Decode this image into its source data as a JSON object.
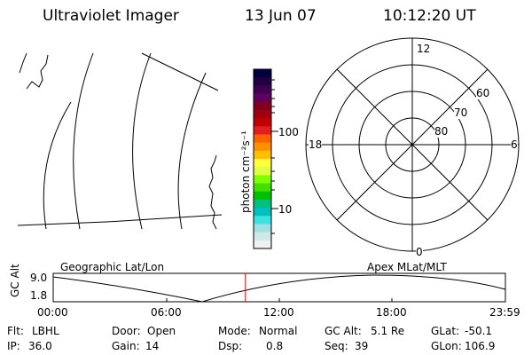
{
  "header": {
    "instrument": "Ultraviolet Imager",
    "date": "13 Jun 07",
    "time": "10:12:20 UT"
  },
  "map_panel": {
    "label": "Geographic Lat/Lon"
  },
  "colorbar": {
    "unit": "photon cm⁻²s⁻¹",
    "ticks": [
      "100",
      "10"
    ],
    "scale": "log",
    "colors": [
      "#000040",
      "#200040",
      "#400050",
      "#600060",
      "#800020",
      "#a00010",
      "#c00000",
      "#e02020",
      "#ff6000",
      "#ff9000",
      "#ffc000",
      "#ffff40",
      "#e0ff40",
      "#80ff00",
      "#40e000",
      "#00c000",
      "#00c080",
      "#00c0c0",
      "#40e0e0",
      "#a0e0e0",
      "#d0e8e8",
      "#f0f0f0"
    ]
  },
  "polar_panel": {
    "label": "Apex MLat/MLT",
    "mlt_labels": {
      "top": "12",
      "left": "18",
      "right": "6",
      "bottom": "0"
    },
    "lat_labels": [
      "60",
      "70",
      "80"
    ]
  },
  "altitude_plot": {
    "ylabel": "GC Alt",
    "yticks": [
      "9.0",
      "1.8"
    ],
    "xticks": [
      "00:00",
      "06:00",
      "12:00",
      "18:00",
      "23:59"
    ],
    "marker_hour": 10.2,
    "line_color": "#000000",
    "marker_color": "#ff0000"
  },
  "status": {
    "filter": {
      "label": "Flt:",
      "value": "LBHL"
    },
    "door": {
      "label": "Door:",
      "value": "Open"
    },
    "mode": {
      "label": "Mode:",
      "value": "Normal"
    },
    "gc_alt": {
      "label": "GC Alt:",
      "value": "5.1 Re"
    },
    "glat": {
      "label": "GLat:",
      "value": "-50.1"
    },
    "ip": {
      "label": "IP:",
      "value": "36.0"
    },
    "gain": {
      "label": "Gain:",
      "value": "14"
    },
    "dsp": {
      "label": "Dsp:",
      "value": "0.8"
    },
    "seq": {
      "label": "Seq:",
      "value": "39"
    },
    "glon": {
      "label": "GLon:",
      "value": "106.9"
    }
  }
}
